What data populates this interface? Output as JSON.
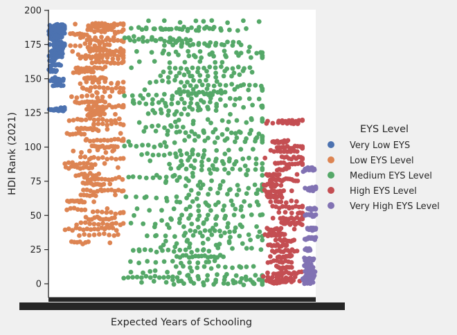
{
  "chart_data": {
    "type": "scatter",
    "title": "",
    "xlabel": "Expected Years of Schooling",
    "ylabel": "HDI Rank (2021)",
    "ylim": [
      -10,
      200
    ],
    "yticks": [
      0,
      25,
      50,
      75,
      100,
      125,
      150,
      175,
      200
    ],
    "xlim": [
      0,
      1
    ],
    "xtick_note": "x tick labels overlap into an unreadable dense band",
    "grid": false,
    "legend": {
      "title": "EYS Level",
      "position": "right",
      "entries": [
        {
          "label": "Very Low EYS",
          "color": "#4c72b0"
        },
        {
          "label": "Low EYS Level",
          "color": "#dd8452"
        },
        {
          "label": "Medium EYS Level",
          "color": "#55a868"
        },
        {
          "label": "High EYS Level",
          "color": "#c44e52"
        },
        {
          "label": "Very High EYS Level",
          "color": "#8172b3"
        }
      ]
    },
    "series": [
      {
        "name": "Very Low EYS",
        "color": "#4c72b0",
        "x_range": [
          0.0,
          0.06
        ],
        "points": [
          [
            0.005,
            189
          ],
          [
            0.02,
            188
          ],
          [
            0.04,
            187
          ],
          [
            0.055,
            189
          ],
          [
            0.01,
            185
          ],
          [
            0.03,
            184
          ],
          [
            0.05,
            183
          ],
          [
            0.015,
            180
          ],
          [
            0.035,
            178
          ],
          [
            0.05,
            176
          ],
          [
            0.005,
            175
          ],
          [
            0.025,
            174
          ],
          [
            0.045,
            172
          ],
          [
            0.01,
            170
          ],
          [
            0.03,
            168
          ],
          [
            0.05,
            166
          ],
          [
            0.02,
            164
          ],
          [
            0.04,
            160
          ],
          [
            0.03,
            156
          ],
          [
            0.015,
            150
          ],
          [
            0.04,
            148
          ],
          [
            0.055,
            145
          ],
          [
            0.03,
            128
          ],
          [
            0.05,
            127
          ],
          [
            0.01,
            186
          ],
          [
            0.045,
            181
          ]
        ]
      },
      {
        "name": "Low EYS Level",
        "color": "#dd8452",
        "x_range": [
          0.06,
          0.28
        ],
        "points": [
          [
            0.1,
            190
          ],
          [
            0.15,
            188
          ],
          [
            0.2,
            185
          ],
          [
            0.25,
            183
          ],
          [
            0.12,
            180
          ],
          [
            0.18,
            178
          ],
          [
            0.22,
            175
          ],
          [
            0.27,
            172
          ],
          [
            0.09,
            170
          ],
          [
            0.14,
            167
          ],
          [
            0.19,
            165
          ],
          [
            0.24,
            162
          ],
          [
            0.11,
            158
          ],
          [
            0.16,
            155
          ],
          [
            0.21,
            150
          ],
          [
            0.26,
            147
          ],
          [
            0.13,
            143
          ],
          [
            0.18,
            140
          ],
          [
            0.23,
            137
          ],
          [
            0.1,
            133
          ],
          [
            0.15,
            130
          ],
          [
            0.2,
            127
          ],
          [
            0.25,
            124
          ],
          [
            0.12,
            120
          ],
          [
            0.17,
            117
          ],
          [
            0.22,
            113
          ],
          [
            0.27,
            110
          ],
          [
            0.14,
            105
          ],
          [
            0.19,
            100
          ],
          [
            0.24,
            97
          ],
          [
            0.16,
            92
          ],
          [
            0.21,
            88
          ],
          [
            0.26,
            85
          ],
          [
            0.13,
            80
          ],
          [
            0.18,
            77
          ],
          [
            0.23,
            73
          ],
          [
            0.2,
            68
          ],
          [
            0.25,
            65
          ],
          [
            0.17,
            60
          ],
          [
            0.22,
            55
          ],
          [
            0.27,
            52
          ],
          [
            0.19,
            48
          ],
          [
            0.24,
            44
          ],
          [
            0.21,
            40
          ],
          [
            0.26,
            36
          ],
          [
            0.23,
            30
          ]
        ]
      },
      {
        "name": "Medium EYS Level",
        "color": "#55a868",
        "x_range": [
          0.28,
          0.8
        ],
        "points": [
          [
            0.35,
            186
          ],
          [
            0.42,
            187
          ],
          [
            0.5,
            186
          ],
          [
            0.58,
            192
          ],
          [
            0.3,
            180
          ],
          [
            0.4,
            178
          ],
          [
            0.5,
            176
          ],
          [
            0.6,
            174
          ],
          [
            0.33,
            170
          ],
          [
            0.45,
            168
          ],
          [
            0.55,
            166
          ],
          [
            0.65,
            162
          ],
          [
            0.31,
            158
          ],
          [
            0.43,
            155
          ],
          [
            0.53,
            152
          ],
          [
            0.63,
            148
          ],
          [
            0.72,
            145
          ],
          [
            0.36,
            142
          ],
          [
            0.48,
            140
          ],
          [
            0.6,
            138
          ],
          [
            0.7,
            135
          ],
          [
            0.32,
            132
          ],
          [
            0.44,
            130
          ],
          [
            0.56,
            127
          ],
          [
            0.68,
            124
          ],
          [
            0.76,
            120
          ],
          [
            0.34,
            118
          ],
          [
            0.46,
            115
          ],
          [
            0.58,
            112
          ],
          [
            0.7,
            110
          ],
          [
            0.78,
            107
          ],
          [
            0.3,
            104
          ],
          [
            0.42,
            101
          ],
          [
            0.54,
            98
          ],
          [
            0.66,
            95
          ],
          [
            0.75,
            92
          ],
          [
            0.38,
            90
          ],
          [
            0.5,
            87
          ],
          [
            0.62,
            84
          ],
          [
            0.74,
            80
          ],
          [
            0.3,
            78
          ],
          [
            0.44,
            75
          ],
          [
            0.56,
            72
          ],
          [
            0.68,
            69
          ],
          [
            0.78,
            66
          ],
          [
            0.36,
            63
          ],
          [
            0.48,
            60
          ],
          [
            0.6,
            57
          ],
          [
            0.72,
            54
          ],
          [
            0.32,
            50
          ],
          [
            0.46,
            47
          ],
          [
            0.58,
            44
          ],
          [
            0.7,
            41
          ],
          [
            0.79,
            38
          ],
          [
            0.4,
            35
          ],
          [
            0.52,
            32
          ],
          [
            0.64,
            29
          ],
          [
            0.76,
            26
          ],
          [
            0.34,
            24
          ],
          [
            0.48,
            20
          ],
          [
            0.6,
            16
          ],
          [
            0.72,
            12
          ],
          [
            0.38,
            9
          ],
          [
            0.52,
            6
          ],
          [
            0.66,
            5
          ],
          [
            0.74,
            3
          ],
          [
            0.7,
            1
          ],
          [
            0.77,
            0
          ]
        ]
      },
      {
        "name": "High EYS Level",
        "color": "#c44e52",
        "x_range": [
          0.8,
          0.95
        ],
        "points": [
          [
            0.82,
            119
          ],
          [
            0.86,
            118
          ],
          [
            0.9,
            118
          ],
          [
            0.84,
            104
          ],
          [
            0.88,
            100
          ],
          [
            0.92,
            97
          ],
          [
            0.81,
            92
          ],
          [
            0.85,
            88
          ],
          [
            0.89,
            84
          ],
          [
            0.93,
            80
          ],
          [
            0.83,
            76
          ],
          [
            0.87,
            72
          ],
          [
            0.91,
            68
          ],
          [
            0.82,
            64
          ],
          [
            0.86,
            60
          ],
          [
            0.9,
            56
          ],
          [
            0.94,
            52
          ],
          [
            0.84,
            48
          ],
          [
            0.88,
            44
          ],
          [
            0.92,
            40
          ],
          [
            0.81,
            36
          ],
          [
            0.85,
            32
          ],
          [
            0.89,
            28
          ],
          [
            0.93,
            24
          ],
          [
            0.83,
            20
          ],
          [
            0.87,
            16
          ],
          [
            0.91,
            12
          ],
          [
            0.82,
            8
          ],
          [
            0.86,
            5
          ],
          [
            0.9,
            3
          ],
          [
            0.94,
            2
          ],
          [
            0.85,
            1
          ]
        ]
      },
      {
        "name": "Very High EYS Level",
        "color": "#8172b3",
        "x_range": [
          0.95,
          1.0
        ],
        "points": [
          [
            0.96,
            84
          ],
          [
            0.99,
            83
          ],
          [
            0.96,
            70
          ],
          [
            0.99,
            68
          ],
          [
            0.97,
            55
          ],
          [
            0.99,
            50
          ],
          [
            0.97,
            40
          ],
          [
            0.99,
            33
          ],
          [
            0.96,
            25
          ],
          [
            0.98,
            18
          ],
          [
            0.97,
            14
          ],
          [
            0.99,
            12
          ],
          [
            0.96,
            9
          ],
          [
            0.98,
            7
          ],
          [
            0.97,
            5
          ],
          [
            0.99,
            4
          ],
          [
            0.96,
            3
          ],
          [
            0.98,
            2
          ],
          [
            0.99,
            1
          ]
        ]
      }
    ]
  }
}
